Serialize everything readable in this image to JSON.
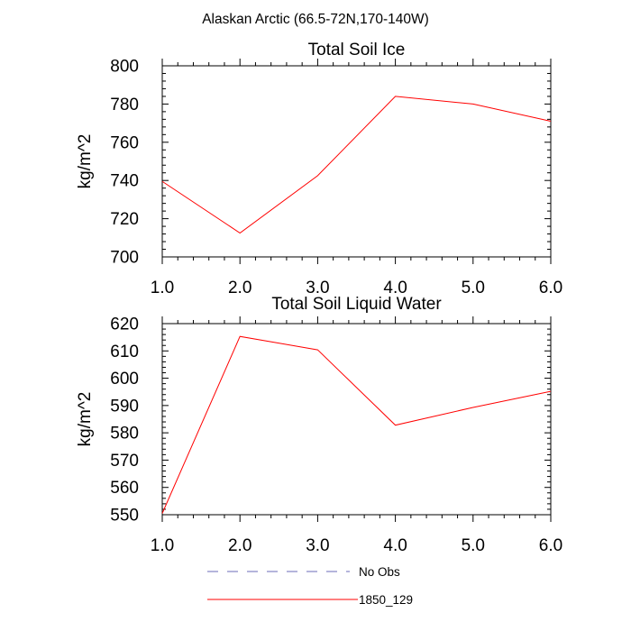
{
  "figure": {
    "suptitle": "Alaskan Arctic (66.5-72N,170-140W)"
  },
  "chart_data": [
    {
      "type": "line",
      "title": "Total Soil Ice",
      "xlabel": "",
      "ylabel": "kg/m^2",
      "x": [
        1.0,
        2.0,
        3.0,
        4.0,
        5.0,
        6.0
      ],
      "xlim": [
        1.0,
        6.0
      ],
      "ylim": [
        700,
        800
      ],
      "x_ticks": [
        "1.0",
        "2.0",
        "3.0",
        "4.0",
        "5.0",
        "6.0"
      ],
      "y_ticks": [
        "700",
        "720",
        "740",
        "760",
        "780",
        "800"
      ],
      "series": [
        {
          "name": "1850_129",
          "color": "#ff0000",
          "values": [
            739.5,
            712.5,
            742.5,
            784.0,
            780.0,
            771.0
          ]
        }
      ]
    },
    {
      "type": "line",
      "title": "Total Soil Liquid Water",
      "xlabel": "",
      "ylabel": "kg/m^2",
      "x": [
        1.0,
        2.0,
        3.0,
        4.0,
        5.0,
        6.0
      ],
      "xlim": [
        1.0,
        6.0
      ],
      "ylim": [
        550,
        620
      ],
      "x_ticks": [
        "1.0",
        "2.0",
        "3.0",
        "4.0",
        "5.0",
        "6.0"
      ],
      "y_ticks": [
        "550",
        "560",
        "570",
        "580",
        "590",
        "600",
        "610",
        "620"
      ],
      "series": [
        {
          "name": "1850_129",
          "color": "#ff0000",
          "values": [
            550.5,
            615.3,
            610.4,
            582.8,
            589.3,
            595.2
          ]
        }
      ]
    }
  ],
  "legend": [
    {
      "label": "No Obs",
      "color": "#6b6bb8",
      "style": "dashed"
    },
    {
      "label": "1850_129",
      "color": "#ff0000",
      "style": "solid"
    }
  ]
}
